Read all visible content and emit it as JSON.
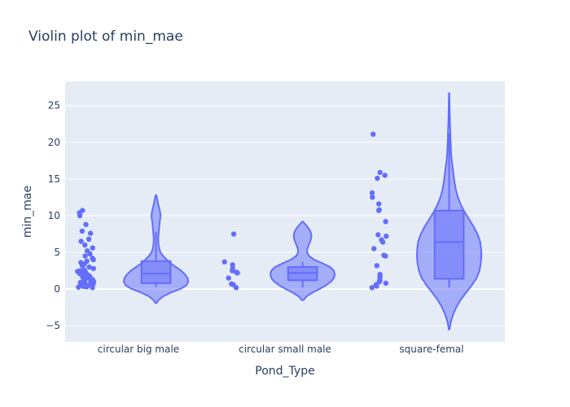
{
  "chart_data": {
    "type": "violin",
    "title": "Violin plot of min_mae",
    "xlabel": "Pond_Type",
    "ylabel": "min_mae",
    "categories": [
      "circular big male",
      "circular small male",
      "square-femal"
    ],
    "ylim": [
      -7.2,
      28.3
    ],
    "yticks": [
      -5,
      0,
      5,
      10,
      15,
      20,
      25
    ],
    "grid": true,
    "points_shown": "all",
    "colors": {
      "plot_bg": "#e5ecf6",
      "grid": "#ffffff",
      "violin_line": "#636efa",
      "violin_fill": "#636efa",
      "points": "#636efa",
      "text": "#2a3f5f"
    },
    "series": [
      {
        "category": "circular big male",
        "box": {
          "q1": 0.8,
          "median": 2.1,
          "q3": 3.8,
          "lower_whisker": 0.3,
          "upper_whisker": 7.8
        },
        "violin_range": [
          -1.9,
          12.8
        ],
        "density": [
          [
            -1.9,
            0.02
          ],
          [
            -1.5,
            0.08
          ],
          [
            -1.0,
            0.22
          ],
          [
            -0.5,
            0.45
          ],
          [
            0.0,
            0.75
          ],
          [
            0.5,
            0.94
          ],
          [
            1.0,
            1.0
          ],
          [
            1.5,
            0.98
          ],
          [
            2.0,
            0.9
          ],
          [
            2.5,
            0.78
          ],
          [
            3.0,
            0.62
          ],
          [
            3.5,
            0.46
          ],
          [
            4.0,
            0.33
          ],
          [
            4.5,
            0.22
          ],
          [
            5.0,
            0.14
          ],
          [
            5.5,
            0.1
          ],
          [
            6.0,
            0.08
          ],
          [
            6.5,
            0.07
          ],
          [
            7.0,
            0.07
          ],
          [
            7.5,
            0.08
          ],
          [
            8.0,
            0.09
          ],
          [
            8.5,
            0.1
          ],
          [
            9.0,
            0.11
          ],
          [
            9.5,
            0.13
          ],
          [
            10.0,
            0.14
          ],
          [
            10.5,
            0.13
          ],
          [
            11.0,
            0.1
          ],
          [
            11.5,
            0.07
          ],
          [
            12.0,
            0.05
          ],
          [
            12.4,
            0.03
          ],
          [
            12.8,
            0.01
          ]
        ],
        "points": [
          0.2,
          0.25,
          0.3,
          0.35,
          0.4,
          0.45,
          0.5,
          0.55,
          0.6,
          0.7,
          0.8,
          0.9,
          1.0,
          1.1,
          1.2,
          1.3,
          1.4,
          1.5,
          1.6,
          1.7,
          1.8,
          1.9,
          2.0,
          2.1,
          2.2,
          2.3,
          2.4,
          2.5,
          2.6,
          2.8,
          3.0,
          3.2,
          3.4,
          3.6,
          3.8,
          4.0,
          4.2,
          4.5,
          4.8,
          5.2,
          5.6,
          6.0,
          6.5,
          6.8,
          7.6,
          7.9,
          8.8,
          10.0,
          10.4,
          10.7
        ]
      },
      {
        "category": "circular small male",
        "box": {
          "q1": 1.2,
          "median": 2.2,
          "q3": 3.0,
          "lower_whisker": 0.2,
          "upper_whisker": 3.7
        },
        "violin_range": [
          -1.5,
          9.2
        ],
        "density": [
          [
            -1.5,
            0.03
          ],
          [
            -1.0,
            0.12
          ],
          [
            -0.5,
            0.3
          ],
          [
            0.0,
            0.52
          ],
          [
            0.5,
            0.72
          ],
          [
            1.0,
            0.88
          ],
          [
            1.5,
            0.97
          ],
          [
            2.0,
            1.0
          ],
          [
            2.5,
            0.97
          ],
          [
            3.0,
            0.86
          ],
          [
            3.5,
            0.62
          ],
          [
            4.0,
            0.36
          ],
          [
            4.5,
            0.2
          ],
          [
            5.0,
            0.14
          ],
          [
            5.5,
            0.15
          ],
          [
            6.0,
            0.19
          ],
          [
            6.5,
            0.24
          ],
          [
            7.0,
            0.27
          ],
          [
            7.5,
            0.27
          ],
          [
            8.0,
            0.23
          ],
          [
            8.5,
            0.15
          ],
          [
            9.0,
            0.05
          ],
          [
            9.2,
            0.01
          ]
        ],
        "points": [
          0.2,
          0.6,
          0.7,
          1.5,
          2.2,
          2.3,
          2.5,
          2.8,
          3.3,
          3.7,
          7.5
        ]
      },
      {
        "category": "square-femal",
        "box": {
          "q1": 1.4,
          "median": 6.4,
          "q3": 10.7,
          "lower_whisker": 0.2,
          "upper_whisker": 21.2
        },
        "violin_range": [
          -5.5,
          26.7
        ],
        "density": [
          [
            -5.5,
            0.01
          ],
          [
            -4.5,
            0.05
          ],
          [
            -3.5,
            0.12
          ],
          [
            -2.5,
            0.22
          ],
          [
            -1.5,
            0.35
          ],
          [
            -0.5,
            0.52
          ],
          [
            0.5,
            0.7
          ],
          [
            1.5,
            0.85
          ],
          [
            2.5,
            0.94
          ],
          [
            3.5,
            0.98
          ],
          [
            4.5,
            1.0
          ],
          [
            5.5,
            0.99
          ],
          [
            6.5,
            0.96
          ],
          [
            7.5,
            0.88
          ],
          [
            8.5,
            0.76
          ],
          [
            9.5,
            0.62
          ],
          [
            10.5,
            0.48
          ],
          [
            11.5,
            0.36
          ],
          [
            12.5,
            0.27
          ],
          [
            13.5,
            0.21
          ],
          [
            14.5,
            0.17
          ],
          [
            15.5,
            0.14
          ],
          [
            16.5,
            0.11
          ],
          [
            17.5,
            0.08
          ],
          [
            18.5,
            0.06
          ],
          [
            19.5,
            0.05
          ],
          [
            20.5,
            0.04
          ],
          [
            21.5,
            0.035
          ],
          [
            22.5,
            0.025
          ],
          [
            23.5,
            0.02
          ],
          [
            24.5,
            0.015
          ],
          [
            25.5,
            0.01
          ],
          [
            26.7,
            0.005
          ]
        ],
        "points": [
          0.2,
          0.4,
          0.6,
          0.8,
          1.0,
          1.2,
          1.5,
          1.8,
          2.0,
          3.2,
          4.5,
          4.6,
          5.5,
          6.4,
          6.7,
          7.2,
          7.4,
          9.2,
          10.7,
          10.8,
          11.6,
          12.5,
          13.1,
          15.1,
          15.5,
          15.9,
          21.1
        ]
      }
    ]
  }
}
